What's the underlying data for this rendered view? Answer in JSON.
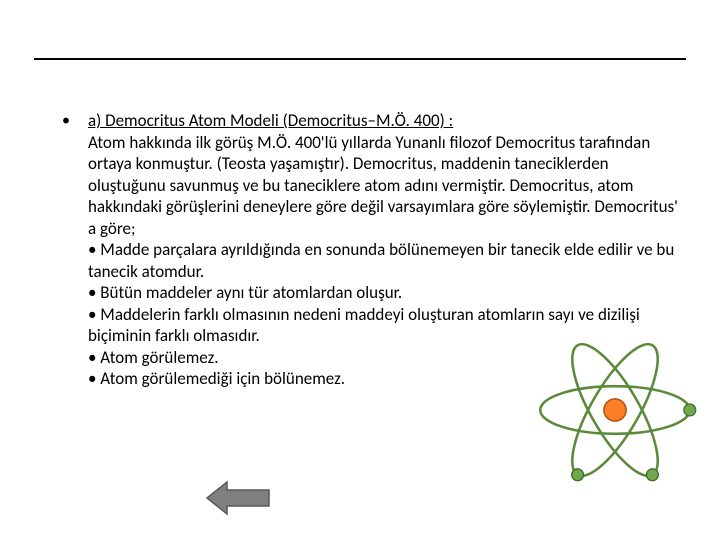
{
  "rule": {
    "color": "#000000"
  },
  "bullet_char": "•",
  "title": "a) Democritus Atom Modeli (Democritus–M.Ö. 400) :",
  "body": "Atom hakkında ilk görüş M.Ö. 400'lü yıllarda Yunanlı filozof Democritus tarafından ortaya konmuştur. (Teosta yaşamıştır). Democritus, maddenin taneciklerden oluştuğunu savunmuş ve bu taneciklere atom adını vermiştir. Democritus, atom hakkındaki görüşlerini deneylere göre değil varsayımlara göre söylemiştir. Democritus' a göre;\n• Madde parçalara ayrıldığında en sonunda bölünemeyen bir tanecik elde edilir ve bu tanecik atomdur.\n• Bütün maddeler aynı tür atomlardan oluşur.\n• Maddelerin farklı olmasının nedeni maddeyi oluşturan atomların sayı ve dizilişi biçiminin farklı olmasıdır.\n• Atom görülemez.\n• Atom görülemediği için bölünemez.",
  "back_arrow": {
    "fill": "#7f7f7f",
    "stroke": "#595959"
  },
  "atom_diagram": {
    "orbit_color": "#5b8a3a",
    "orbit_stroke_width": 3,
    "nucleus_fill": "#ff7f27",
    "nucleus_stroke": "#b35617",
    "electron_fill": "#6fa84f",
    "electron_stroke": "#3f6b2b",
    "background": "#ffffff"
  }
}
